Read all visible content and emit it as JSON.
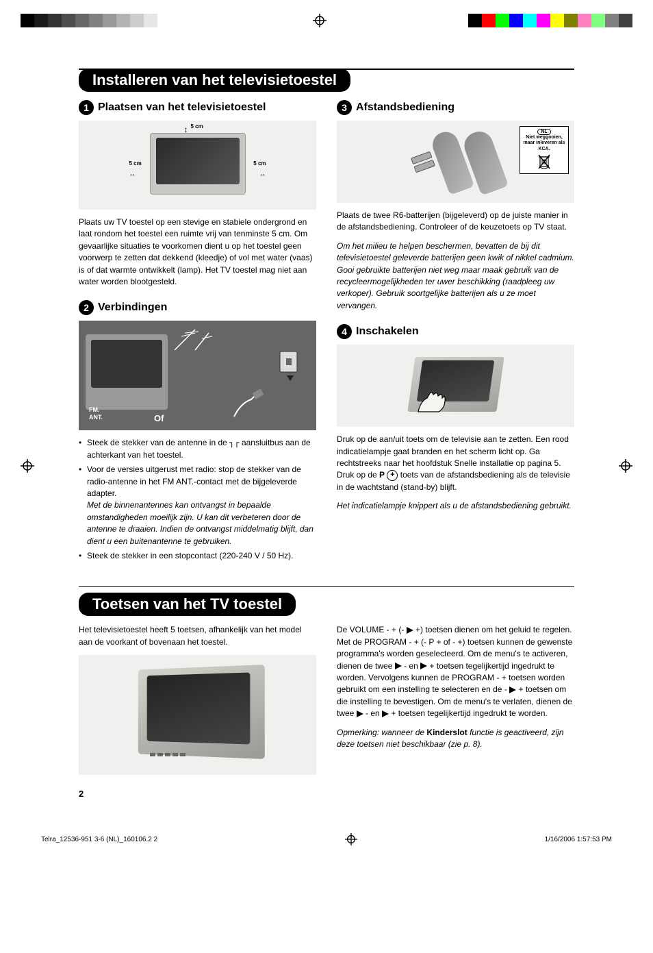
{
  "colorbar_left": [
    "#000000",
    "#1a1a1a",
    "#333333",
    "#4d4d4d",
    "#666666",
    "#808080",
    "#999999",
    "#b3b3b3",
    "#cccccc",
    "#e6e6e6",
    "#ffffff"
  ],
  "colorbar_right": [
    "#000000",
    "#ff0000",
    "#00ff00",
    "#0000ff",
    "#00ffff",
    "#ff00ff",
    "#ffff00",
    "#808000",
    "#ff80c0",
    "#80ff80",
    "#808080",
    "#404040"
  ],
  "section1_title": "Installeren van het televisietoestel",
  "section2_title": "Toetsen van het TV toestel",
  "s1": {
    "num": "1",
    "heading": "Plaatsen van het televisietoestel",
    "label_5cm": "5 cm",
    "text": "Plaats uw TV toestel op een stevige en stabiele ondergrond en laat rondom het toestel een ruimte vrij van tenminste 5 cm. Om gevaarlijke situaties te voorkomen dient u op het toestel geen voorwerp te zetten dat dekkend (kleedje) of vol met water (vaas) is of dat warmte ontwikkelt (lamp). Het TV toestel mag niet aan water worden blootgesteld."
  },
  "s2": {
    "num": "2",
    "heading": "Verbindingen",
    "fm_label": "FM.",
    "ant_label": "ANT.",
    "of_label": "Of",
    "b1a": "Steek de stekker van de antenne in de ",
    "b1b": " aansluitbus aan de achterkant van het toestel.",
    "b2": "Voor de versies uitgerust met radio: stop de stekker van de radio-antenne in het FM ANT.-contact met de bijgeleverde adapter.",
    "b2_italic": "Met de binnenantennes kan ontvangst in bepaalde omstandigheden moeilijk zijn. U kan dit verbeteren door de antenne te draaien. Indien de ontvangst middelmatig blijft, dan dient u een buitenantenne te gebruiken.",
    "b3": "Steek de stekker in een stopcontact (220-240 V / 50 Hz)."
  },
  "s3": {
    "num": "3",
    "heading": "Afstandsbediening",
    "kca_nl": "NL",
    "kca_text": "Niet weggooien, maar inleveren als KCA.",
    "text": "Plaats de twee R6-batterijen (bijgeleverd) op de juiste manier in de afstandsbediening. Controleer of de keuzetoets op TV staat.",
    "italic": "Om het milieu te helpen beschermen, bevatten de bij dit televisietoestel geleverde batterijen geen kwik of nikkel cadmium. Gooi gebruikte batterijen niet weg maar maak gebruik van de recycleermogelijkheden ter uwer beschikking (raadpleeg uw verkoper). Gebruik soortgelijke batterijen als u ze moet vervangen."
  },
  "s4": {
    "num": "4",
    "heading": "Inschakelen",
    "text1": "Druk op de aan/uit toets om de televisie aan te zetten. Een rood indicatielampje gaat branden en het scherm licht op. Ga rechtstreeks naar het hoofdstuk Snelle installatie op pagina 5. Druk op de ",
    "p_label": "P",
    "text2": " toets van de afstandsbediening als de televisie in de wachtstand (stand-by) blijft.",
    "italic": "Het indicatielampje knippert als u de afstandsbediening gebruikt."
  },
  "toetsen": {
    "left": "Het televisietoestel heeft 5 toetsen, afhankelijk van het model aan de voorkant of bovenaan het toestel.",
    "right1": "De VOLUME - + (- ",
    "right2": " +) toetsen dienen om het geluid te regelen. Met de PROGRAM - + (- P + of - +) toetsen kunnen de gewenste programma's worden geselecteerd. Om de menu's te activeren, dienen de twee ",
    "right3": " - en ",
    "right4": " + toetsen tegelijkertijd ingedrukt te worden. Vervolgens kunnen de PROGRAM - + toetsen worden gebruikt om een instelling te selecteren en de - ",
    "right5": " + toetsen om die instelling te bevestigen. Om de menu's te verlaten, dienen de twee ",
    "right6": " - en ",
    "right7": " + toetsen tegelijkertijd ingedrukt te worden.",
    "note_pre": "Opmerking: wanneer de ",
    "note_bold": "Kinderslot",
    "note_post": " functie is geactiveerd, zijn deze toetsen niet beschikbaar (zie p. 8)."
  },
  "page_number": "2",
  "footer_left": "Telra_12536-951 3-6 (NL)_160106.2   2",
  "footer_right": "1/16/2006   1:57:53 PM"
}
